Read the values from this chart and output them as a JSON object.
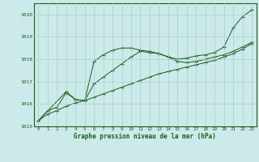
{
  "title": "Graphe pression niveau de la mer (hPa)",
  "bg_color": "#cdeaea",
  "grid_color": "#aacece",
  "line_color": "#1a5c1a",
  "xlim": [
    -0.5,
    23.5
  ],
  "ylim": [
    1015.0,
    1020.5
  ],
  "yticks": [
    1015,
    1016,
    1017,
    1018,
    1019,
    1020
  ],
  "xticks": [
    0,
    1,
    2,
    3,
    4,
    5,
    6,
    7,
    8,
    9,
    10,
    11,
    12,
    13,
    14,
    15,
    16,
    17,
    18,
    19,
    20,
    21,
    22,
    23
  ],
  "series1": {
    "x": [
      0,
      1,
      2,
      3,
      4,
      5,
      6,
      7,
      8,
      9,
      10,
      11,
      12,
      13,
      14,
      15,
      16,
      17,
      18,
      19,
      20,
      21,
      22,
      23
    ],
    "y": [
      1015.25,
      1015.55,
      1015.7,
      1015.9,
      1016.05,
      1016.15,
      1016.3,
      1016.45,
      1016.6,
      1016.75,
      1016.9,
      1017.05,
      1017.2,
      1017.35,
      1017.45,
      1017.55,
      1017.65,
      1017.75,
      1017.85,
      1017.95,
      1018.1,
      1018.25,
      1018.45,
      1018.7
    ]
  },
  "series2": {
    "x": [
      0,
      1,
      2,
      3,
      4,
      5,
      6,
      7,
      8,
      9,
      10,
      11,
      12,
      13,
      14,
      15,
      16,
      17,
      18,
      19,
      20,
      21,
      22,
      23
    ],
    "y": [
      1015.25,
      1015.7,
      1015.85,
      1016.5,
      1016.2,
      1016.15,
      1016.9,
      1017.2,
      1017.5,
      1017.8,
      1018.1,
      1018.35,
      1018.3,
      1018.25,
      1018.1,
      1017.9,
      1017.85,
      1017.9,
      1018.0,
      1018.1,
      1018.2,
      1018.35,
      1018.55,
      1018.75
    ]
  },
  "series3": {
    "x": [
      0,
      3,
      4,
      5,
      6,
      7,
      8,
      9,
      10,
      11,
      12,
      13,
      14,
      15,
      16,
      17,
      18,
      19,
      20,
      21,
      22,
      23
    ],
    "y": [
      1015.25,
      1016.55,
      1016.2,
      1016.15,
      1017.9,
      1018.2,
      1018.4,
      1018.5,
      1018.5,
      1018.4,
      1018.35,
      1018.25,
      1018.1,
      1018.0,
      1018.05,
      1018.15,
      1018.2,
      1018.3,
      1018.55,
      1019.4,
      1019.9,
      1020.2
    ]
  }
}
